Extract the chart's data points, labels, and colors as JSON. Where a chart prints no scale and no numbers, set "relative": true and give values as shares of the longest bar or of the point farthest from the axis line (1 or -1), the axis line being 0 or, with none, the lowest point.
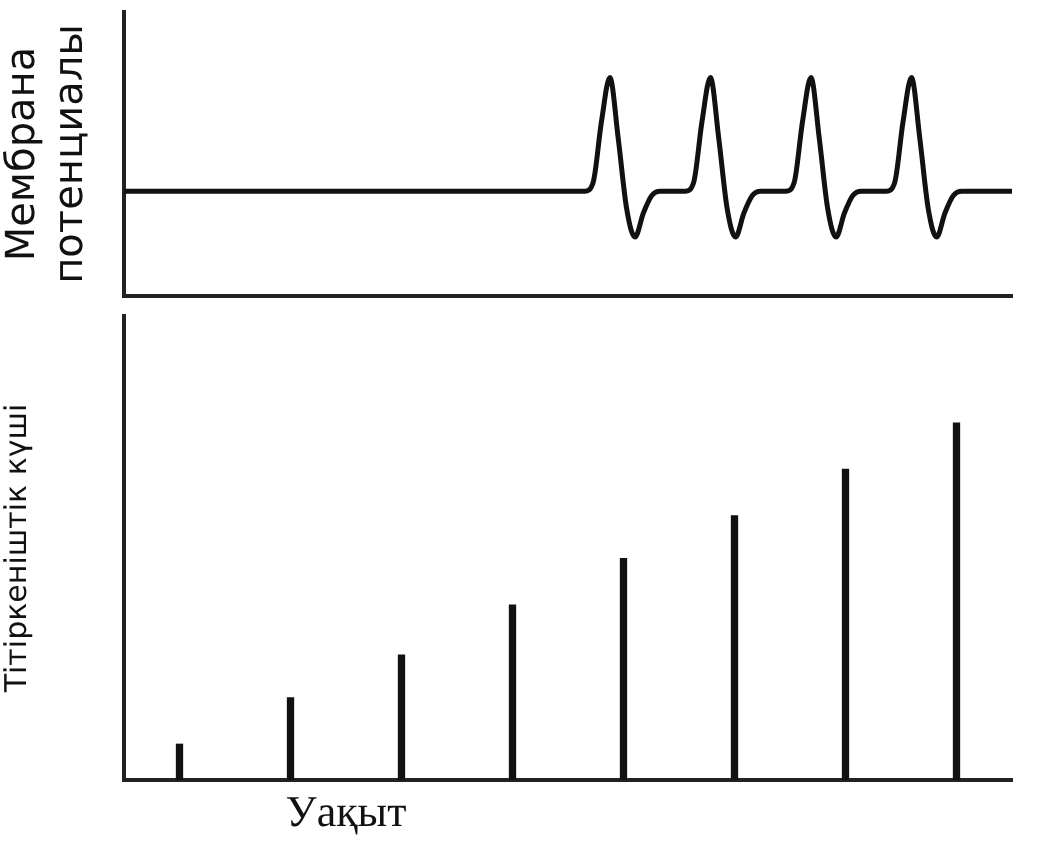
{
  "chart_data": [
    {
      "type": "line",
      "ylabel": "Мембрана потенциалы",
      "relative": true,
      "tick_labels": false,
      "grid": false,
      "legend": false,
      "marker": "none",
      "line_style": "solid",
      "categories": [
        null,
        null,
        null,
        null,
        null,
        null,
        null,
        null,
        null,
        null,
        null,
        null,
        null,
        null,
        null,
        null,
        null,
        null,
        null,
        null,
        null,
        null,
        null,
        null,
        null,
        null,
        null,
        null,
        null,
        null,
        null,
        null,
        null,
        null,
        null,
        null,
        null,
        null,
        null,
        null,
        null,
        null,
        null,
        null,
        null,
        null,
        null,
        null,
        null,
        null,
        null,
        null,
        null,
        null,
        null,
        null,
        null,
        null,
        null,
        null,
        null,
        null,
        null,
        null,
        null,
        null,
        null,
        null,
        null,
        null,
        null,
        null,
        null,
        null,
        null,
        null,
        null,
        null,
        null,
        null,
        null,
        null,
        null,
        null,
        null,
        null,
        null,
        null,
        null,
        null,
        null,
        null,
        null,
        null,
        null,
        null,
        null,
        null,
        null,
        null,
        null,
        null,
        null,
        null,
        null,
        null,
        null
      ],
      "color": "#111111",
      "values": [
        0.48,
        0.48,
        0.48,
        0.48,
        0.48,
        0.48,
        0.48,
        0.48,
        0.48,
        0.48,
        0.48,
        0.48,
        0.48,
        0.48,
        0.48,
        0.48,
        0.48,
        0.48,
        0.48,
        0.48,
        0.48,
        0.48,
        0.48,
        0.48,
        0.48,
        0.48,
        0.48,
        0.48,
        0.48,
        0.48,
        0.48,
        0.48,
        0.48,
        0.48,
        0.48,
        0.48,
        0.48,
        0.48,
        0.48,
        0.48,
        0.48,
        0.48,
        0.48,
        0.48,
        0.48,
        0.48,
        0.48,
        0.48,
        0.48,
        0.48,
        0.48,
        0.48,
        0.48,
        0.48,
        0.48,
        0.48,
        0.52,
        0.8,
        1,
        0.72,
        0.4,
        0.27,
        0.38,
        0.46,
        0.48,
        0.48,
        0.48,
        0.48,
        0.52,
        0.8,
        1,
        0.72,
        0.4,
        0.27,
        0.38,
        0.46,
        0.48,
        0.48,
        0.48,
        0.48,
        0.52,
        0.8,
        1,
        0.72,
        0.4,
        0.27,
        0.38,
        0.46,
        0.48,
        0.48,
        0.48,
        0.48,
        0.52,
        0.8,
        1,
        0.72,
        0.4,
        0.27,
        0.38,
        0.46,
        0.48,
        0.48,
        0.48,
        0.48,
        0.48,
        0.48,
        0.48
      ]
    },
    {
      "type": "bar",
      "ylabel": "Тітіркеніштік күші",
      "xlabel": "Уақыт",
      "relative": true,
      "tick_labels": false,
      "grid": false,
      "legend": false,
      "categories": [
        null,
        null,
        null,
        null,
        null,
        null,
        null,
        null
      ],
      "color": "#111111",
      "values": [
        0.1,
        0.23,
        0.35,
        0.49,
        0.62,
        0.74,
        0.87,
        1
      ]
    }
  ]
}
